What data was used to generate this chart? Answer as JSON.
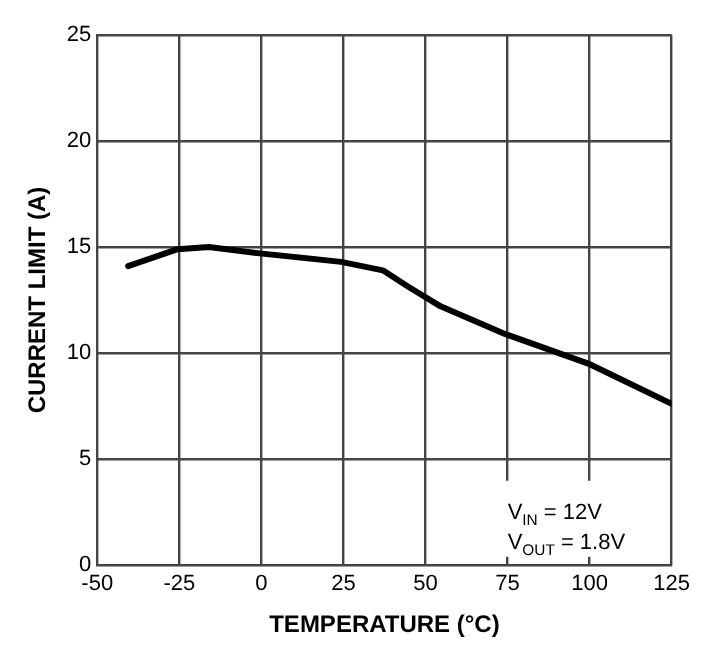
{
  "chart_data": {
    "type": "line",
    "xlabel": "TEMPERATURE (°C)",
    "ylabel": "CURRENT LIMIT (A)",
    "x": [
      -40.6,
      -25.5,
      -16,
      -0.5,
      24.3,
      37,
      45,
      54.6,
      74.2,
      99.6,
      125
    ],
    "series": [
      {
        "color": "#000000",
        "values": [
          14.1,
          14.9,
          15,
          14.7,
          14.3,
          13.9,
          13.1,
          12.2,
          10.9,
          9.5,
          7.6
        ]
      }
    ],
    "xlim": [
      -50,
      125
    ],
    "xticks": [
      -50,
      -25,
      0,
      25,
      50,
      75,
      100,
      125
    ],
    "ylim": [
      0,
      25
    ],
    "yticks": [
      0,
      5,
      10,
      15,
      20,
      25
    ],
    "grid": true,
    "legend": false,
    "marker": "none",
    "line_style": "solid",
    "annotations": [
      "V$_{IN}$ = 12V",
      "V$_{OUT}$ = 1.8V"
    ]
  }
}
